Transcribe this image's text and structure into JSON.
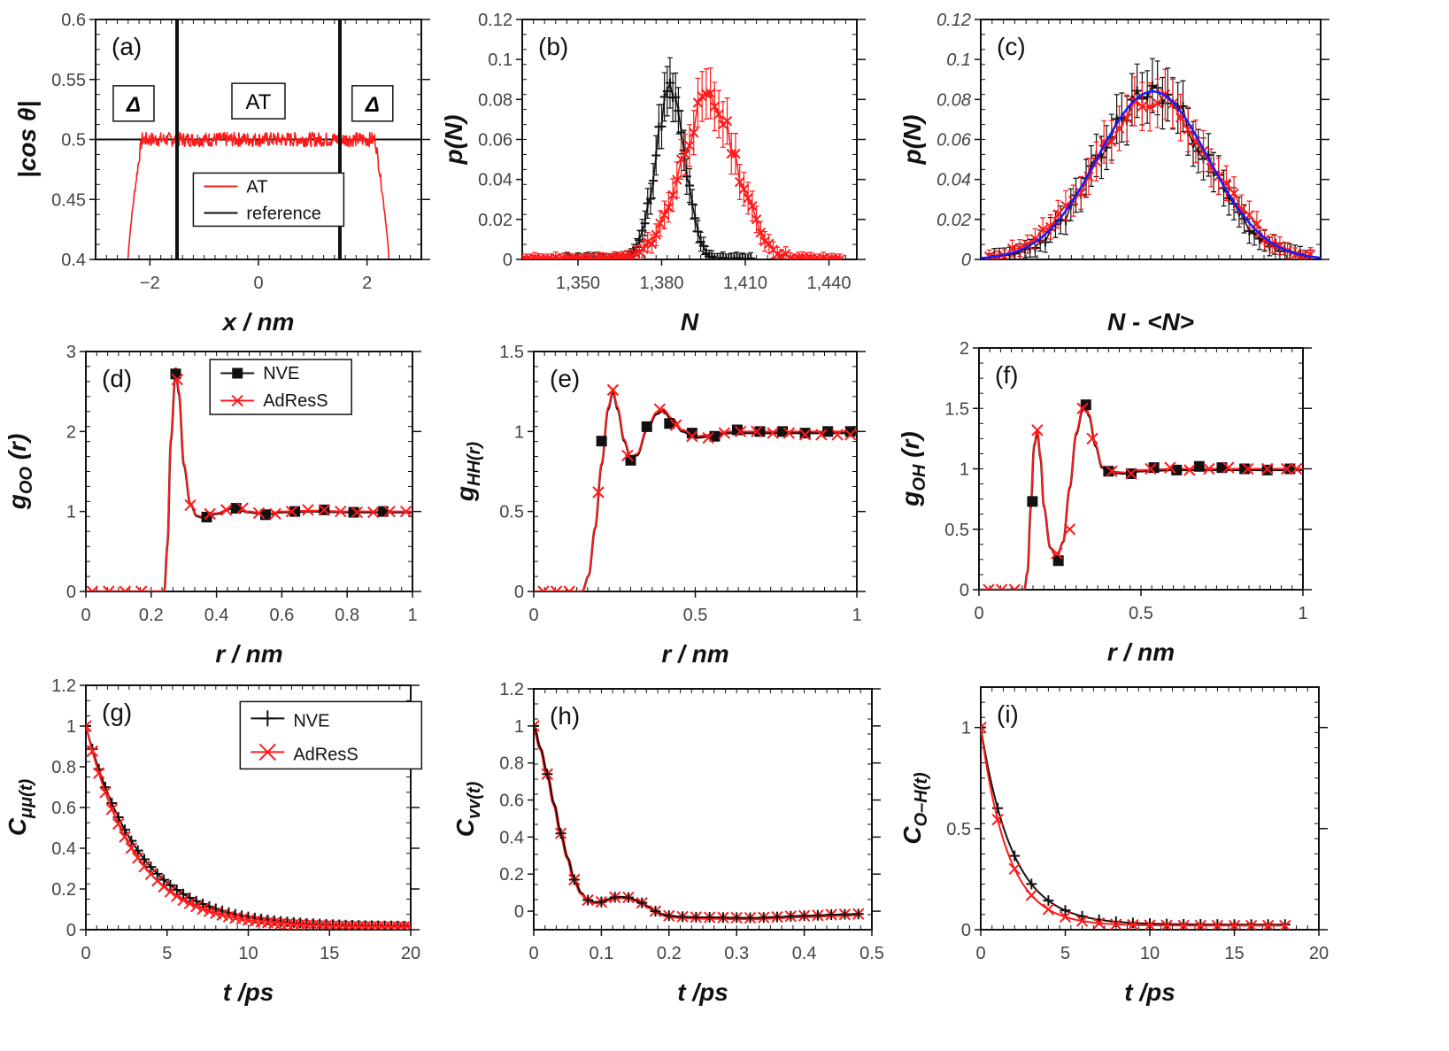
{
  "figure": {
    "colors": {
      "red": "#ff1a1a",
      "black": "#111111",
      "blue": "#1a1aff"
    }
  },
  "chart_data": [
    {
      "id": "a",
      "type": "line",
      "panel_label": "(a)",
      "xlabel": "x / nm",
      "ylabel": "|cos θ|",
      "xlim": [
        -3,
        3
      ],
      "ylim": [
        0.4,
        0.6
      ],
      "xticks": [
        -2,
        0,
        2
      ],
      "xtick_labels": [
        "−2",
        "0",
        "2"
      ],
      "yticks": [
        0.4,
        0.45,
        0.5,
        0.55,
        0.6
      ],
      "ytick_labels": [
        "0.4",
        "0.45",
        "0.5",
        "0.55",
        "0.6"
      ],
      "region_boundaries_x": [
        -1.5,
        1.5
      ],
      "region_labels": [
        {
          "text": "Δ",
          "x": -2.3,
          "y": 0.53,
          "bold": true
        },
        {
          "text": "AT",
          "x": 0,
          "y": 0.532,
          "bold": false
        },
        {
          "text": "Δ",
          "x": 2.1,
          "y": 0.53,
          "bold": true
        }
      ],
      "legend": [
        {
          "name": "AT",
          "color": "#ff1a1a"
        },
        {
          "name": "reference",
          "color": "#111111"
        }
      ],
      "series": [
        {
          "name": "AT",
          "color": "#ff1a1a",
          "style": "noisy_band",
          "x_range": [
            -2.4,
            2.4
          ],
          "plateau": 0.5,
          "noise": 0.006,
          "edge_drop_to": 0.402,
          "edge_width": 0.25
        },
        {
          "name": "reference",
          "color": "#111111",
          "style": "hline",
          "y": 0.5
        }
      ]
    },
    {
      "id": "b",
      "type": "scatter",
      "panel_label": "(b)",
      "xlabel": "N",
      "ylabel": "p(N)",
      "xlim": [
        1330,
        1450
      ],
      "ylim": [
        0,
        0.12
      ],
      "xticks": [
        1350,
        1380,
        1410,
        1440
      ],
      "xtick_labels": [
        "1,350",
        "1,380",
        "1,410",
        "1,440"
      ],
      "yticks": [
        0,
        0.02,
        0.04,
        0.06,
        0.08,
        0.1,
        0.12
      ],
      "ytick_labels": [
        "0",
        "0.02",
        "0.04",
        "0.06",
        "0.08",
        "0.1",
        "0.12"
      ],
      "series": [
        {
          "name": "reference",
          "color": "#111111",
          "marker": "plus",
          "style": "gaussian",
          "mu": 1383,
          "sigma": 5.2,
          "amp": 0.084,
          "x_range": [
            1345,
            1412
          ],
          "step": 1,
          "err": 0.012
        },
        {
          "name": "AT",
          "color": "#ff1a1a",
          "marker": "cross",
          "style": "gaussian",
          "mu": 1397,
          "sigma": 10,
          "amp": 0.079,
          "x_range": [
            1330,
            1445
          ],
          "step": 1.5,
          "err": 0.012
        }
      ]
    },
    {
      "id": "c",
      "type": "scatter",
      "panel_label": "(c)",
      "xlabel": "N - <N>",
      "ylabel": "p(N)",
      "xlim": [
        -4,
        4
      ],
      "ylim": [
        0,
        0.12
      ],
      "xticks": [],
      "xtick_labels": [],
      "yticks": [
        0,
        0.02,
        0.04,
        0.06,
        0.08,
        0.1,
        0.12
      ],
      "ytick_labels": [
        "0",
        "0.02",
        "0.04",
        "0.06",
        "0.08",
        "0.1",
        "0.12"
      ],
      "ytick_italic": true,
      "series": [
        {
          "name": "reference",
          "color": "#111111",
          "marker": "plus",
          "style": "gaussian",
          "mu": 0.05,
          "sigma": 1.25,
          "amp": 0.084,
          "x_range": [
            -3.8,
            3.8
          ],
          "step": 0.12,
          "err": 0.013
        },
        {
          "name": "AT",
          "color": "#ff1a1a",
          "marker": "cross",
          "style": "gaussian",
          "mu": 0.05,
          "sigma": 1.35,
          "amp": 0.08,
          "x_range": [
            -3.8,
            3.8
          ],
          "step": 0.18,
          "err": 0.012
        },
        {
          "name": "gaussian fit",
          "color": "#1a1aff",
          "style": "curve",
          "mu": 0.05,
          "sigma": 1.3,
          "amp": 0.084
        }
      ]
    },
    {
      "id": "d",
      "type": "line",
      "panel_label": "(d)",
      "xlabel": "r / nm",
      "ylabel": "g_OO (r)",
      "xlim": [
        0,
        1
      ],
      "ylim": [
        0,
        3
      ],
      "xticks": [
        0,
        0.2,
        0.4,
        0.6,
        0.8,
        1
      ],
      "xtick_labels": [
        "0",
        "0.2",
        "0.4",
        "0.6",
        "0.8",
        "1"
      ],
      "yticks": [
        0,
        1,
        2,
        3
      ],
      "ytick_labels": [
        "0",
        "1",
        "2",
        "3"
      ],
      "legend": [
        {
          "name": "NVE",
          "color": "#111111",
          "marker": "square"
        },
        {
          "name": "AdResS",
          "color": "#ff1a1a",
          "marker": "cross"
        }
      ],
      "curve": {
        "x": [
          0,
          0.24,
          0.25,
          0.26,
          0.275,
          0.285,
          0.3,
          0.32,
          0.34,
          0.36,
          0.4,
          0.45,
          0.5,
          0.55,
          0.6,
          0.7,
          0.8,
          0.9,
          1.0
        ],
        "y": [
          0,
          0,
          0.6,
          1.9,
          2.8,
          2.5,
          1.6,
          1.1,
          0.95,
          0.93,
          0.98,
          1.05,
          1.0,
          0.97,
          1.0,
          1.01,
          1.0,
          1.0,
          1.0
        ]
      },
      "markers_nve": {
        "x": [
          0.275,
          0.37,
          0.46,
          0.55,
          0.64,
          0.73,
          0.82,
          0.91
        ],
        "y": [
          2.72,
          0.93,
          1.04,
          0.96,
          1.0,
          1.02,
          0.99,
          1.0
        ]
      },
      "markers_adress": {
        "x": [
          0.02,
          0.07,
          0.12,
          0.17,
          0.28,
          0.32,
          0.38,
          0.43,
          0.48,
          0.53,
          0.58,
          0.63,
          0.68,
          0.73,
          0.78,
          0.83,
          0.88,
          0.93,
          0.98
        ],
        "y": [
          0,
          0,
          0,
          0,
          2.65,
          1.08,
          0.97,
          1.02,
          1.04,
          0.98,
          0.97,
          1.0,
          1.02,
          1.02,
          1.0,
          0.99,
          0.99,
          1.0,
          1.0
        ]
      }
    },
    {
      "id": "e",
      "type": "line",
      "panel_label": "(e)",
      "xlabel": "r / nm",
      "ylabel": "g_HH(r)",
      "xlim": [
        0,
        1
      ],
      "ylim": [
        0,
        1.5
      ],
      "xticks": [
        0,
        0.5,
        1
      ],
      "xtick_labels": [
        "0",
        "0.5",
        "1"
      ],
      "yticks": [
        0,
        0.5,
        1,
        1.5
      ],
      "ytick_labels": [
        "0",
        "0.5",
        "1",
        "1.5"
      ],
      "curve": {
        "x": [
          0,
          0.15,
          0.17,
          0.19,
          0.21,
          0.23,
          0.245,
          0.26,
          0.28,
          0.3,
          0.32,
          0.35,
          0.38,
          0.4,
          0.43,
          0.46,
          0.5,
          0.55,
          0.6,
          0.7,
          0.8,
          0.9,
          1.0
        ],
        "y": [
          0,
          0,
          0.1,
          0.4,
          0.8,
          1.15,
          1.26,
          1.15,
          0.95,
          0.84,
          0.86,
          1.02,
          1.12,
          1.14,
          1.08,
          1.01,
          0.97,
          0.98,
          1.0,
          1.0,
          1.0,
          1.0,
          1.0
        ]
      },
      "markers_nve": {
        "x": [
          0.21,
          0.3,
          0.35,
          0.42,
          0.49,
          0.56,
          0.63,
          0.7,
          0.77,
          0.84,
          0.91,
          0.98
        ],
        "y": [
          0.94,
          0.82,
          1.03,
          1.05,
          0.99,
          0.97,
          1.01,
          1.0,
          1.0,
          0.99,
          1.0,
          1.0
        ]
      },
      "markers_adress": {
        "x": [
          0.03,
          0.07,
          0.11,
          0.2,
          0.245,
          0.29,
          0.39,
          0.44,
          0.49,
          0.54,
          0.59,
          0.64,
          0.69,
          0.74,
          0.79,
          0.84,
          0.89,
          0.94,
          0.98
        ],
        "y": [
          0,
          0,
          0,
          0.62,
          1.26,
          0.85,
          1.14,
          1.04,
          0.97,
          0.96,
          0.99,
          1.0,
          1.0,
          0.99,
          0.99,
          0.98,
          0.98,
          0.98,
          0.98
        ]
      }
    },
    {
      "id": "f",
      "type": "line",
      "panel_label": "(f)",
      "xlabel": "r / nm",
      "ylabel": "g_OH (r)",
      "xlim": [
        0,
        1
      ],
      "ylim": [
        0,
        2
      ],
      "xticks": [
        0,
        0.5,
        1
      ],
      "xtick_labels": [
        "0",
        "0.5",
        "1"
      ],
      "yticks": [
        0,
        0.5,
        1,
        1.5,
        2
      ],
      "ytick_labels": [
        "0",
        "0.5",
        "1",
        "1.5",
        "2"
      ],
      "curve": {
        "x": [
          0,
          0.14,
          0.15,
          0.16,
          0.17,
          0.18,
          0.19,
          0.2,
          0.22,
          0.24,
          0.26,
          0.28,
          0.3,
          0.32,
          0.33,
          0.34,
          0.36,
          0.38,
          0.4,
          0.45,
          0.5,
          0.6,
          0.7,
          0.8,
          0.9,
          1.0
        ],
        "y": [
          0,
          0,
          0.15,
          0.7,
          1.2,
          1.32,
          1.1,
          0.7,
          0.35,
          0.27,
          0.4,
          0.85,
          1.3,
          1.5,
          1.52,
          1.45,
          1.2,
          1.02,
          0.98,
          0.97,
          0.99,
          1.0,
          1.0,
          1.0,
          1.0,
          1.0
        ]
      },
      "markers_nve": {
        "x": [
          0.165,
          0.245,
          0.33,
          0.4,
          0.47,
          0.54,
          0.61,
          0.68,
          0.75,
          0.82,
          0.89,
          0.96
        ],
        "y": [
          0.73,
          0.24,
          1.53,
          0.98,
          0.96,
          1.01,
          0.99,
          1.02,
          1.01,
          1.0,
          0.99,
          1.0
        ]
      },
      "markers_adress": {
        "x": [
          0.03,
          0.07,
          0.11,
          0.18,
          0.24,
          0.28,
          0.32,
          0.35,
          0.41,
          0.47,
          0.53,
          0.59,
          0.65,
          0.71,
          0.77,
          0.83,
          0.89,
          0.95,
          0.98
        ],
        "y": [
          0,
          0,
          0,
          1.32,
          0.3,
          0.5,
          1.5,
          1.25,
          0.98,
          0.96,
          1.0,
          1.01,
          0.99,
          1.0,
          1.01,
          1.0,
          1.0,
          1.0,
          1.0
        ]
      }
    },
    {
      "id": "g",
      "type": "line",
      "panel_label": "(g)",
      "xlabel": "t /ps",
      "ylabel": "C_μμ(t)",
      "xlim": [
        0,
        20
      ],
      "ylim": [
        0,
        1.2
      ],
      "xticks": [
        0,
        5,
        10,
        15,
        20
      ],
      "xtick_labels": [
        "0",
        "5",
        "10",
        "15",
        "20"
      ],
      "yticks": [
        0,
        0.2,
        0.4,
        0.6,
        0.8,
        1,
        1.2
      ],
      "ytick_labels": [
        "0",
        "0.2",
        "0.4",
        "0.6",
        "0.8",
        "1",
        "1.2"
      ],
      "legend": [
        {
          "name": "NVE",
          "color": "#111111",
          "marker": "plus"
        },
        {
          "name": "AdResS",
          "color": "#ff1a1a",
          "marker": "cross"
        }
      ],
      "series": [
        {
          "name": "NVE",
          "color": "#111111",
          "marker": "plus",
          "style": "exp",
          "tau": 3.3,
          "offset": 0.015,
          "x_range": [
            0,
            20
          ],
          "step": 0.4
        },
        {
          "name": "AdResS",
          "color": "#ff1a1a",
          "marker": "cross",
          "style": "exp",
          "tau": 3.0,
          "offset": 0.012,
          "x_range": [
            0,
            20
          ],
          "step": 0.4
        }
      ]
    },
    {
      "id": "h",
      "type": "line",
      "panel_label": "(h)",
      "xlabel": "t /ps",
      "ylabel": "C_vv(t)",
      "xlim": [
        0,
        0.5
      ],
      "ylim": [
        -0.1,
        1.2
      ],
      "xticks": [
        0,
        0.1,
        0.2,
        0.3,
        0.4,
        0.5
      ],
      "xtick_labels": [
        "0",
        "0.1",
        "0.2",
        "0.3",
        "0.4",
        "0.5"
      ],
      "yticks": [
        0,
        0.2,
        0.4,
        0.6,
        0.8,
        1,
        1.2
      ],
      "ytick_labels": [
        "0",
        "0.2",
        "0.4",
        "0.6",
        "0.8",
        "1",
        "1.2"
      ],
      "curve": {
        "x": [
          0,
          0.01,
          0.02,
          0.03,
          0.04,
          0.05,
          0.06,
          0.07,
          0.08,
          0.09,
          0.1,
          0.11,
          0.12,
          0.13,
          0.14,
          0.15,
          0.16,
          0.17,
          0.18,
          0.19,
          0.2,
          0.22,
          0.25,
          0.3,
          0.33,
          0.35,
          0.4,
          0.45,
          0.48
        ],
        "y": [
          1.0,
          0.88,
          0.74,
          0.58,
          0.42,
          0.29,
          0.17,
          0.1,
          0.06,
          0.05,
          0.05,
          0.065,
          0.075,
          0.078,
          0.074,
          0.062,
          0.045,
          0.025,
          0.0,
          -0.015,
          -0.025,
          -0.03,
          -0.033,
          -0.035,
          -0.036,
          -0.032,
          -0.025,
          -0.018,
          -0.015
        ]
      },
      "markers_x": [
        0,
        0.02,
        0.04,
        0.06,
        0.08,
        0.1,
        0.12,
        0.14,
        0.16,
        0.18,
        0.2,
        0.22,
        0.24,
        0.26,
        0.28,
        0.3,
        0.32,
        0.34,
        0.36,
        0.38,
        0.4,
        0.42,
        0.44,
        0.46,
        0.48
      ]
    },
    {
      "id": "i",
      "type": "line",
      "panel_label": "(i)",
      "xlabel": "t /ps",
      "ylabel": "C_O–H(t)",
      "xlim": [
        0,
        20
      ],
      "ylim": [
        0,
        1.2
      ],
      "xticks": [
        0,
        5,
        10,
        15,
        20
      ],
      "xtick_labels": [
        "0",
        "5",
        "10",
        "15",
        "20"
      ],
      "yticks": [
        0,
        0.5,
        1
      ],
      "ytick_labels": [
        "0",
        "0.5",
        "1"
      ],
      "series": [
        {
          "name": "NVE",
          "color": "#111111",
          "marker": "plus",
          "style": "exp",
          "tau": 1.9,
          "offset": 0.025,
          "x_range": [
            0,
            18
          ],
          "step": 1
        },
        {
          "name": "AdResS",
          "color": "#ff1a1a",
          "marker": "cross",
          "style": "exp",
          "tau": 1.6,
          "offset": 0.02,
          "x_range": [
            0,
            18
          ],
          "step": 1
        }
      ]
    }
  ]
}
